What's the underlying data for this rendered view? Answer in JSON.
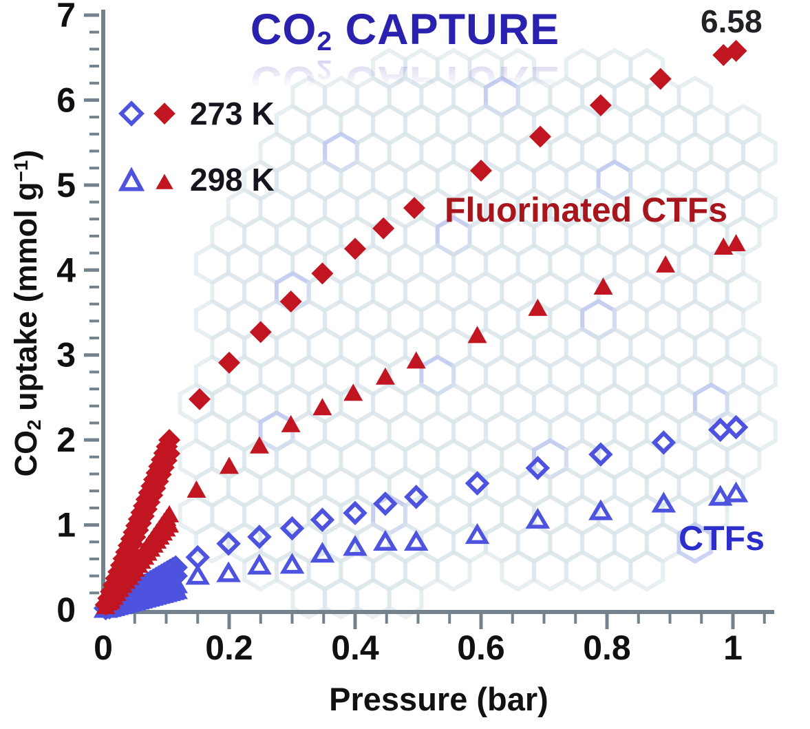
{
  "title": {
    "parts": [
      "CO",
      "2",
      " CAPTURE"
    ]
  },
  "annotations": {
    "max_value": "6.58",
    "fluorinated_label": "Fluorinated CTFs",
    "ctfs_label": "CTFs"
  },
  "legend": {
    "items": [
      {
        "label": "273 K",
        "open_marker": "open-diamond-icon",
        "filled_marker": "filled-diamond-icon"
      },
      {
        "label": "298 K",
        "open_marker": "open-triangle-icon",
        "filled_marker": "filled-triangle-icon"
      }
    ]
  },
  "axes": {
    "x_label": "Pressure (bar)",
    "y_label_parts": [
      "CO",
      "2",
      " uptake (mmol g",
      "−1",
      ")"
    ]
  },
  "colors": {
    "red": "#c11622",
    "dark_red_label": "#a8161d",
    "blue": "#4d53de",
    "blue_label": "#2c2ecb",
    "title_blue": "#2a22ae",
    "axis_gray": "#73828c",
    "tick_text": "#101010",
    "pattern": "#d9e5e9",
    "pattern_blue": "#bcc4ef"
  },
  "chart_data": {
    "type": "scatter",
    "title": "CO2 CAPTURE",
    "xlabel": "Pressure (bar)",
    "ylabel": "CO2 uptake (mmol g-1)",
    "xlim": [
      0,
      1.065
    ],
    "ylim": [
      0,
      7
    ],
    "grid": false,
    "legend_position": "upper-left",
    "x_ticks": {
      "values": [
        0,
        0.2,
        0.4,
        0.6,
        0.8,
        1
      ],
      "labels": [
        "0",
        "0.2",
        "0.4",
        "0.6",
        "0.8",
        "1"
      ],
      "minor_step": 0.05,
      "minor_max": 1.05
    },
    "y_ticks": {
      "values": [
        0,
        1,
        2,
        3,
        4,
        5,
        6,
        7
      ],
      "labels": [
        "0",
        "1",
        "2",
        "3",
        "4",
        "5",
        "6",
        "7"
      ],
      "minor_step": 0.2
    },
    "annotation": {
      "text": "6.58",
      "x": 1.0,
      "y": 6.58
    },
    "series": [
      {
        "name": "CTFs 273 K",
        "material": "CTFs",
        "temperature": "273 K",
        "marker": "diamond-open",
        "color": "blue",
        "points": [
          [
            0.15,
            0.62
          ],
          [
            0.199,
            0.78
          ],
          [
            0.248,
            0.86
          ],
          [
            0.3,
            0.96
          ],
          [
            0.348,
            1.06
          ],
          [
            0.4,
            1.14
          ],
          [
            0.448,
            1.25
          ],
          [
            0.497,
            1.33
          ],
          [
            0.594,
            1.49
          ],
          [
            0.69,
            1.67
          ],
          [
            0.79,
            1.83
          ],
          [
            0.89,
            1.97
          ],
          [
            0.98,
            2.12
          ],
          [
            1.005,
            2.15
          ]
        ],
        "dense": [
          {
            "x0": 0.004,
            "y0": 0.02,
            "x1": 0.115,
            "y1": 0.5,
            "n": 26
          },
          {
            "x0": 0.01,
            "y0": 0.03,
            "x1": 0.115,
            "y1": 0.4,
            "n": 22
          }
        ]
      },
      {
        "name": "CTFs 298 K",
        "material": "CTFs",
        "temperature": "298 K",
        "marker": "triangle-open",
        "color": "blue",
        "points": [
          [
            0.15,
            0.4
          ],
          [
            0.199,
            0.43
          ],
          [
            0.248,
            0.52
          ],
          [
            0.3,
            0.53
          ],
          [
            0.348,
            0.66
          ],
          [
            0.4,
            0.74
          ],
          [
            0.448,
            0.8
          ],
          [
            0.497,
            0.8
          ],
          [
            0.594,
            0.88
          ],
          [
            0.69,
            1.06
          ],
          [
            0.79,
            1.16
          ],
          [
            0.89,
            1.25
          ],
          [
            0.98,
            1.33
          ],
          [
            1.005,
            1.37
          ]
        ],
        "dense": [
          {
            "x0": 0.004,
            "y0": 0.01,
            "x1": 0.115,
            "y1": 0.3,
            "n": 26
          },
          {
            "x0": 0.01,
            "y0": 0.02,
            "x1": 0.115,
            "y1": 0.23,
            "n": 20
          }
        ]
      },
      {
        "name": "Fluorinated CTFs 298 K",
        "material": "Fluorinated CTFs",
        "temperature": "298 K",
        "marker": "triangle-filled",
        "color": "red",
        "points": [
          [
            0.148,
            1.41
          ],
          [
            0.2,
            1.69
          ],
          [
            0.248,
            1.93
          ],
          [
            0.298,
            2.18
          ],
          [
            0.348,
            2.38
          ],
          [
            0.397,
            2.55
          ],
          [
            0.448,
            2.74
          ],
          [
            0.497,
            2.93
          ],
          [
            0.594,
            3.23
          ],
          [
            0.69,
            3.55
          ],
          [
            0.794,
            3.8
          ],
          [
            0.893,
            4.06
          ],
          [
            0.985,
            4.27
          ],
          [
            1.005,
            4.31
          ]
        ],
        "dense": [
          {
            "x0": 0.004,
            "y0": 0.04,
            "x1": 0.105,
            "y1": 1.12,
            "n": 26
          },
          {
            "x0": 0.012,
            "y0": 0.1,
            "x1": 0.105,
            "y1": 1.0,
            "n": 20
          }
        ]
      },
      {
        "name": "Fluorinated CTFs 273 K",
        "material": "Fluorinated CTFs",
        "temperature": "273 K",
        "marker": "diamond-filled",
        "color": "red",
        "points": [
          [
            0.153,
            2.48
          ],
          [
            0.2,
            2.91
          ],
          [
            0.25,
            3.27
          ],
          [
            0.298,
            3.63
          ],
          [
            0.348,
            3.96
          ],
          [
            0.4,
            4.25
          ],
          [
            0.445,
            4.49
          ],
          [
            0.494,
            4.73
          ],
          [
            0.6,
            5.17
          ],
          [
            0.694,
            5.57
          ],
          [
            0.79,
            5.94
          ],
          [
            0.885,
            6.25
          ],
          [
            0.985,
            6.53
          ],
          [
            1.005,
            6.58
          ]
        ],
        "dense": [
          {
            "x0": 0.004,
            "y0": 0.06,
            "x1": 0.105,
            "y1": 2.0,
            "n": 26
          },
          {
            "x0": 0.01,
            "y0": 0.12,
            "x1": 0.105,
            "y1": 1.84,
            "n": 22
          }
        ]
      }
    ]
  }
}
